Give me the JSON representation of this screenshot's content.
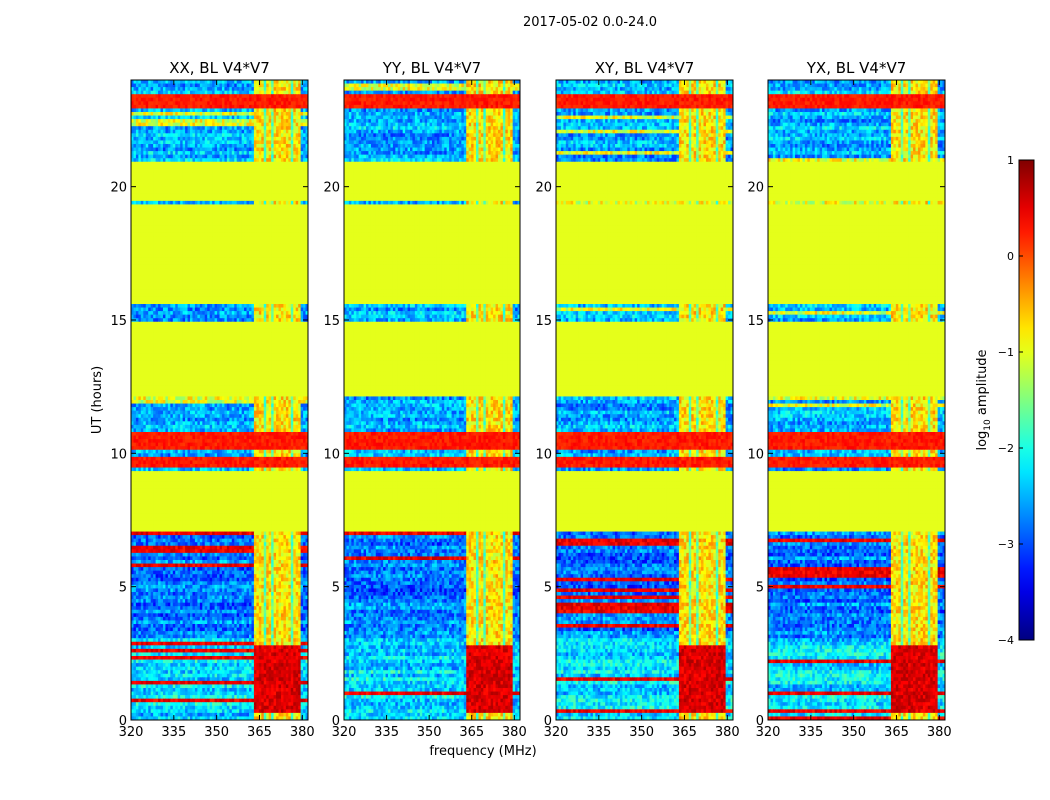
{
  "title": "2017-05-02 0.0-24.0",
  "chart_data": {
    "type": "heatmap",
    "suptitle": "2017-05-02 0.0-24.0",
    "panels": [
      {
        "title": "XX, BL V4*V7"
      },
      {
        "title": "YY, BL V4*V7"
      },
      {
        "title": "XY, BL V4*V7"
      },
      {
        "title": "YX, BL V4*V7"
      }
    ],
    "xlabel": "frequency (MHz)",
    "ylabel": "UT (hours)",
    "xlim": [
      320,
      382
    ],
    "ylim": [
      0,
      24
    ],
    "xticks": [
      320,
      335,
      350,
      365,
      380
    ],
    "yticks": [
      0,
      5,
      10,
      15,
      20
    ],
    "colorbar": {
      "label": "log",
      "label_sub": "10",
      "label_rest": " amplitude",
      "range": [
        -4,
        1
      ],
      "ticks": [
        1,
        0,
        -1,
        -2,
        -3,
        -4
      ],
      "tick_labels": [
        "1",
        "0",
        "−1",
        "−2",
        "−3",
        "−4"
      ],
      "colormap": "jet"
    },
    "flagged_value": -1,
    "structure": {
      "flagged_time_ranges_hours": [
        [
          7.1,
          9.3
        ],
        [
          12.2,
          14.9
        ],
        [
          15.6,
          19.3
        ],
        [
          19.5,
          20.9
        ]
      ],
      "rfi_channel_band_mhz": [
        363,
        379
      ],
      "strong_signal_hours": [
        0.3,
        2.8
      ],
      "strong_rfi_hours": [
        [
          10.2,
          10.8
        ],
        [
          9.5,
          9.8
        ],
        [
          23.0,
          23.5
        ]
      ]
    }
  }
}
